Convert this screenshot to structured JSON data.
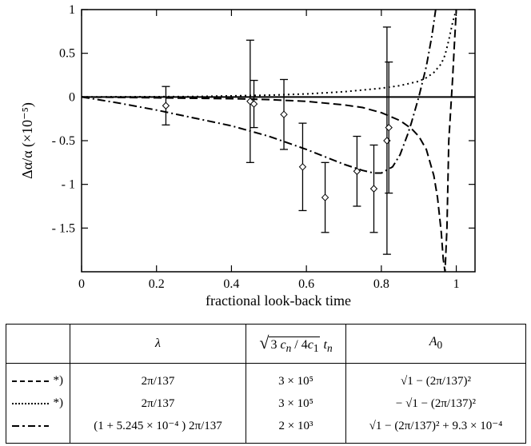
{
  "chart_data": {
    "type": "line",
    "xlabel": "fractional look-back time",
    "ylabel": "Δα/α  (×10⁻⁵)",
    "xlim": [
      0,
      1.05
    ],
    "ylim": [
      -2.0,
      1.0
    ],
    "x_ticks": [
      0,
      0.2,
      0.4,
      0.6,
      0.8,
      1
    ],
    "x_tick_labels": [
      "0",
      "0.2",
      "0.4",
      "0.6",
      "0.8",
      "1"
    ],
    "y_ticks": [
      1,
      0.5,
      0,
      -0.5,
      -1,
      -1.5
    ],
    "y_tick_labels": [
      "1",
      "0.5",
      "0",
      "- 0.5",
      "- 1",
      "- 1.5"
    ],
    "grid": false,
    "zero_line": true,
    "series": [
      {
        "style": "dashed",
        "x": [
          0,
          0.2,
          0.4,
          0.5,
          0.6,
          0.7,
          0.75,
          0.8,
          0.85,
          0.88,
          0.9,
          0.92,
          0.94,
          0.95,
          0.96,
          0.965,
          0.97,
          0.975,
          0.98,
          0.99,
          0.995,
          1.0
        ],
        "y": [
          0,
          -0.01,
          -0.02,
          -0.03,
          -0.05,
          -0.09,
          -0.12,
          -0.18,
          -0.27,
          -0.36,
          -0.45,
          -0.6,
          -0.9,
          -1.15,
          -1.55,
          -1.85,
          -2.0,
          -1.5,
          -0.5,
          0.2,
          0.6,
          1.0
        ]
      },
      {
        "style": "dotted",
        "x": [
          0,
          0.3,
          0.5,
          0.6,
          0.7,
          0.8,
          0.85,
          0.9,
          0.92,
          0.94,
          0.96,
          0.97,
          0.98,
          0.99,
          1.0
        ],
        "y": [
          0,
          0.005,
          0.02,
          0.035,
          0.06,
          0.1,
          0.13,
          0.18,
          0.22,
          0.28,
          0.38,
          0.48,
          0.65,
          0.85,
          1.0
        ]
      },
      {
        "style": "dash-dot",
        "x": [
          0,
          0.1,
          0.2,
          0.3,
          0.4,
          0.5,
          0.6,
          0.7,
          0.75,
          0.78,
          0.8,
          0.83,
          0.85,
          0.87,
          0.88,
          0.9,
          0.92,
          0.935,
          0.945
        ],
        "y": [
          0,
          -0.07,
          -0.15,
          -0.24,
          -0.33,
          -0.45,
          -0.6,
          -0.77,
          -0.84,
          -0.87,
          -0.87,
          -0.8,
          -0.66,
          -0.43,
          -0.3,
          0.0,
          0.35,
          0.7,
          1.0
        ]
      }
    ],
    "points": [
      {
        "x": 0.225,
        "y": -0.1,
        "err": 0.22
      },
      {
        "x": 0.45,
        "y": -0.05,
        "err": 0.7
      },
      {
        "x": 0.46,
        "y": -0.08,
        "err": 0.27
      },
      {
        "x": 0.54,
        "y": -0.2,
        "err": 0.4
      },
      {
        "x": 0.59,
        "y": -0.8,
        "err": 0.5
      },
      {
        "x": 0.65,
        "y": -1.15,
        "err": 0.4
      },
      {
        "x": 0.735,
        "y": -0.85,
        "err": 0.4
      },
      {
        "x": 0.78,
        "y": -1.05,
        "err": 0.5
      },
      {
        "x": 0.815,
        "y": -0.5,
        "err": 1.3
      },
      {
        "x": 0.82,
        "y": -0.35,
        "err": 0.75
      }
    ]
  },
  "legend_table": {
    "headers": {
      "lambda": "λ",
      "tn_base": "3",
      "cn": "c",
      "cn_sub": "n",
      "slash": "/ 4",
      "c1": "c",
      "c1_sub": "1",
      "t": "t",
      "t_sub": "n",
      "a0": "A",
      "a0_sub": "0"
    },
    "notes": [
      "*)",
      "*)",
      ""
    ],
    "lambda": [
      "2π/137",
      "2π/137",
      "(1 + 5.245 × 10⁻⁴ ) 2π/137"
    ],
    "tn": [
      "3 × 10⁵",
      "3 × 10⁵",
      "2 × 10³"
    ],
    "a0": [
      "√1 − (2π/137)²",
      "− √1 − (2π/137)²",
      "√1 − (2π/137)²  + 9.3 × 10⁻⁴"
    ]
  }
}
